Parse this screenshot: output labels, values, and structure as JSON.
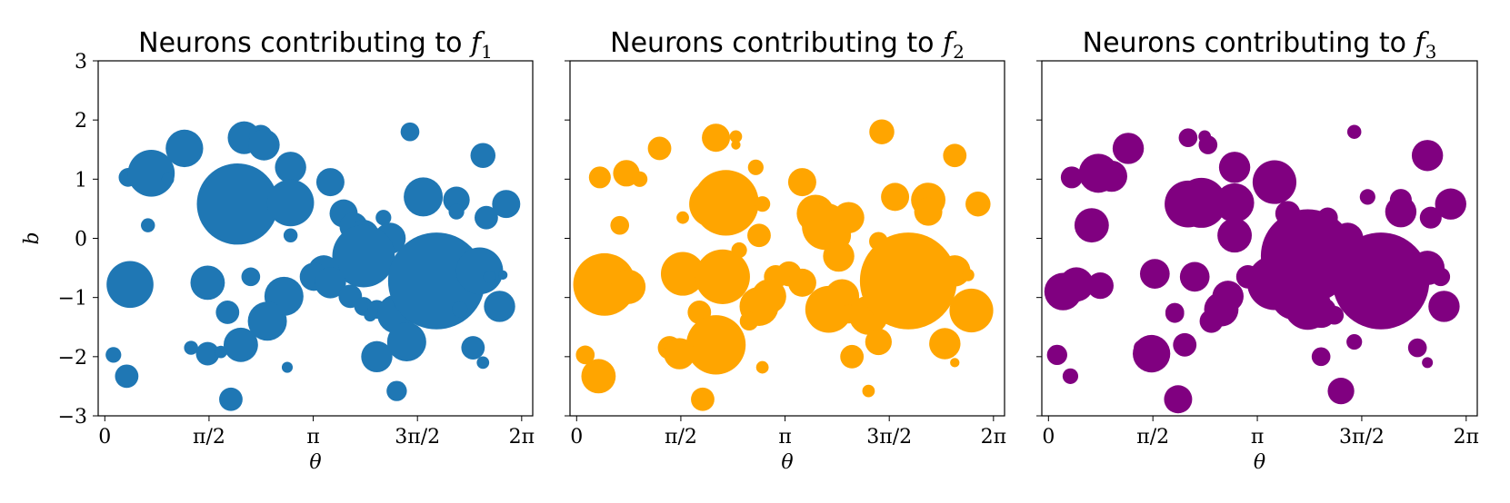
{
  "chart_data": [
    {
      "type": "scatter",
      "title_text": "Neurons contributing to ",
      "title_math": "f",
      "title_sub": "1",
      "xlabel": "θ",
      "ylabel": "b",
      "xlim": [
        -0.1,
        6.45
      ],
      "ylim": [
        -3,
        3
      ],
      "xticks": [
        0,
        1.5708,
        3.1416,
        4.7124,
        6.2832
      ],
      "xtick_labels": [
        "0",
        "π/2",
        "π",
        "3π/2",
        "2π"
      ],
      "yticks": [
        3,
        2,
        1,
        0,
        -1,
        -2,
        -3
      ],
      "ytick_labels": [
        "3",
        "2",
        "1",
        "0",
        "−1",
        "−2",
        "−3"
      ],
      "grid": false,
      "color": "#1f77b4",
      "points": [
        {
          "x": 0.35,
          "y": 1.03,
          "r": 0.12
        },
        {
          "x": 0.7,
          "y": 1.1,
          "r": 0.3
        },
        {
          "x": 0.95,
          "y": 1.0,
          "r": 0.08
        },
        {
          "x": 1.2,
          "y": 1.52,
          "r": 0.24
        },
        {
          "x": 2.1,
          "y": 1.7,
          "r": 0.21
        },
        {
          "x": 2.35,
          "y": 1.72,
          "r": 0.15
        },
        {
          "x": 2.4,
          "y": 1.58,
          "r": 0.2
        },
        {
          "x": 2.0,
          "y": 0.58,
          "r": 0.52
        },
        {
          "x": 2.8,
          "y": 1.2,
          "r": 0.2
        },
        {
          "x": 2.8,
          "y": 0.6,
          "r": 0.3
        },
        {
          "x": 2.8,
          "y": 0.05,
          "r": 0.09
        },
        {
          "x": 0.65,
          "y": 0.22,
          "r": 0.09
        },
        {
          "x": 3.4,
          "y": 0.95,
          "r": 0.18
        },
        {
          "x": 4.6,
          "y": 1.8,
          "r": 0.12
        },
        {
          "x": 5.7,
          "y": 1.4,
          "r": 0.16
        },
        {
          "x": 4.8,
          "y": 0.7,
          "r": 0.25
        },
        {
          "x": 5.3,
          "y": 0.65,
          "r": 0.17
        },
        {
          "x": 5.3,
          "y": 0.45,
          "r": 0.1
        },
        {
          "x": 6.05,
          "y": 0.58,
          "r": 0.18
        },
        {
          "x": 5.75,
          "y": 0.35,
          "r": 0.15
        },
        {
          "x": 3.6,
          "y": 0.42,
          "r": 0.18
        },
        {
          "x": 3.75,
          "y": 0.2,
          "r": 0.18
        },
        {
          "x": 3.9,
          "y": 0.05,
          "r": 0.2
        },
        {
          "x": 4.2,
          "y": 0.35,
          "r": 0.1
        },
        {
          "x": 4.3,
          "y": 0.0,
          "r": 0.2
        },
        {
          "x": 3.9,
          "y": -0.3,
          "r": 0.4
        },
        {
          "x": 3.3,
          "y": -0.55,
          "r": 0.2
        },
        {
          "x": 3.15,
          "y": -0.65,
          "r": 0.18
        },
        {
          "x": 3.4,
          "y": -0.75,
          "r": 0.2
        },
        {
          "x": 0.22,
          "y": -0.9,
          "r": 0.13
        },
        {
          "x": 0.38,
          "y": -0.78,
          "r": 0.3
        },
        {
          "x": 1.55,
          "y": -0.75,
          "r": 0.22
        },
        {
          "x": 2.2,
          "y": -0.65,
          "r": 0.12
        },
        {
          "x": 2.7,
          "y": -0.98,
          "r": 0.25
        },
        {
          "x": 2.45,
          "y": -1.4,
          "r": 0.25
        },
        {
          "x": 1.85,
          "y": -1.25,
          "r": 0.15
        },
        {
          "x": 3.7,
          "y": -0.98,
          "r": 0.15
        },
        {
          "x": 3.9,
          "y": -1.15,
          "r": 0.12
        },
        {
          "x": 4.0,
          "y": -1.3,
          "r": 0.08
        },
        {
          "x": 4.1,
          "y": -1.2,
          "r": 0.12
        },
        {
          "x": 4.4,
          "y": -1.28,
          "r": 0.25
        },
        {
          "x": 4.5,
          "y": -0.6,
          "r": 0.08
        },
        {
          "x": 5.0,
          "y": -0.72,
          "r": 0.62
        },
        {
          "x": 5.65,
          "y": -0.55,
          "r": 0.3
        },
        {
          "x": 5.35,
          "y": -1.2,
          "r": 0.1
        },
        {
          "x": 5.95,
          "y": -1.15,
          "r": 0.2
        },
        {
          "x": 5.55,
          "y": -1.85,
          "r": 0.15
        },
        {
          "x": 5.7,
          "y": -2.1,
          "r": 0.08
        },
        {
          "x": 4.55,
          "y": -1.75,
          "r": 0.25
        },
        {
          "x": 4.1,
          "y": -2.0,
          "r": 0.2
        },
        {
          "x": 4.4,
          "y": -2.58,
          "r": 0.13
        },
        {
          "x": 2.05,
          "y": -1.8,
          "r": 0.22
        },
        {
          "x": 1.3,
          "y": -1.85,
          "r": 0.09
        },
        {
          "x": 1.55,
          "y": -1.95,
          "r": 0.15
        },
        {
          "x": 1.75,
          "y": -1.92,
          "r": 0.08
        },
        {
          "x": 2.75,
          "y": -2.18,
          "r": 0.07
        },
        {
          "x": 0.13,
          "y": -1.97,
          "r": 0.1
        },
        {
          "x": 0.33,
          "y": -2.33,
          "r": 0.15
        },
        {
          "x": 1.9,
          "y": -2.72,
          "r": 0.15
        },
        {
          "x": 5.8,
          "y": -0.65,
          "r": 0.08
        },
        {
          "x": 6.0,
          "y": -0.62,
          "r": 0.06
        }
      ]
    },
    {
      "type": "scatter",
      "title_text": "Neurons contributing to ",
      "title_math": "f",
      "title_sub": "2",
      "xlabel": "θ",
      "ylabel": "",
      "xlim": [
        -0.1,
        6.45
      ],
      "ylim": [
        -3,
        3
      ],
      "xticks": [
        0,
        1.5708,
        3.1416,
        4.7124,
        6.2832
      ],
      "xtick_labels": [
        "0",
        "π/2",
        "π",
        "3π/2",
        "2π"
      ],
      "grid": false,
      "color": "#ffa500",
      "points": [
        {
          "x": 0.35,
          "y": 1.03,
          "r": 0.14
        },
        {
          "x": 0.75,
          "y": 1.1,
          "r": 0.17
        },
        {
          "x": 0.95,
          "y": 1.0,
          "r": 0.1
        },
        {
          "x": 1.25,
          "y": 1.52,
          "r": 0.15
        },
        {
          "x": 2.1,
          "y": 1.7,
          "r": 0.18
        },
        {
          "x": 2.4,
          "y": 1.72,
          "r": 0.08
        },
        {
          "x": 2.4,
          "y": 1.58,
          "r": 0.06
        },
        {
          "x": 2.05,
          "y": 0.58,
          "r": 0.3
        },
        {
          "x": 2.25,
          "y": 0.6,
          "r": 0.42
        },
        {
          "x": 2.7,
          "y": 1.2,
          "r": 0.1
        },
        {
          "x": 2.8,
          "y": 0.58,
          "r": 0.1
        },
        {
          "x": 2.75,
          "y": 0.05,
          "r": 0.15
        },
        {
          "x": 1.6,
          "y": 0.35,
          "r": 0.08
        },
        {
          "x": 0.65,
          "y": 0.22,
          "r": 0.12
        },
        {
          "x": 3.4,
          "y": 0.95,
          "r": 0.18
        },
        {
          "x": 4.6,
          "y": 1.8,
          "r": 0.16
        },
        {
          "x": 5.7,
          "y": 1.4,
          "r": 0.15
        },
        {
          "x": 4.8,
          "y": 0.7,
          "r": 0.18
        },
        {
          "x": 5.3,
          "y": 0.65,
          "r": 0.22
        },
        {
          "x": 5.3,
          "y": 0.45,
          "r": 0.18
        },
        {
          "x": 6.05,
          "y": 0.58,
          "r": 0.16
        },
        {
          "x": 3.6,
          "y": 0.42,
          "r": 0.24
        },
        {
          "x": 3.75,
          "y": 0.2,
          "r": 0.3
        },
        {
          "x": 3.9,
          "y": 0.05,
          "r": 0.2
        },
        {
          "x": 4.1,
          "y": 0.35,
          "r": 0.2
        },
        {
          "x": 3.95,
          "y": -0.3,
          "r": 0.2
        },
        {
          "x": 3.0,
          "y": -0.65,
          "r": 0.15
        },
        {
          "x": 3.2,
          "y": -0.6,
          "r": 0.16
        },
        {
          "x": 3.4,
          "y": -0.75,
          "r": 0.18
        },
        {
          "x": 0.42,
          "y": -0.78,
          "r": 0.4
        },
        {
          "x": 0.78,
          "y": -0.82,
          "r": 0.22
        },
        {
          "x": 1.6,
          "y": -0.6,
          "r": 0.28
        },
        {
          "x": 2.2,
          "y": -0.65,
          "r": 0.35
        },
        {
          "x": 2.9,
          "y": -0.98,
          "r": 0.22
        },
        {
          "x": 2.75,
          "y": -1.15,
          "r": 0.25
        },
        {
          "x": 2.6,
          "y": -1.4,
          "r": 0.12
        },
        {
          "x": 1.85,
          "y": -1.25,
          "r": 0.15
        },
        {
          "x": 4.0,
          "y": -0.98,
          "r": 0.22
        },
        {
          "x": 3.8,
          "y": -1.2,
          "r": 0.3
        },
        {
          "x": 4.1,
          "y": -1.28,
          "r": 0.12
        },
        {
          "x": 4.4,
          "y": -1.3,
          "r": 0.25
        },
        {
          "x": 4.5,
          "y": -0.6,
          "r": 0.12
        },
        {
          "x": 4.6,
          "y": -0.15,
          "r": 0.1
        },
        {
          "x": 4.55,
          "y": -0.05,
          "r": 0.12
        },
        {
          "x": 5.0,
          "y": -0.72,
          "r": 0.62
        },
        {
          "x": 5.7,
          "y": -0.55,
          "r": 0.2
        },
        {
          "x": 5.95,
          "y": -1.22,
          "r": 0.28
        },
        {
          "x": 5.55,
          "y": -1.78,
          "r": 0.2
        },
        {
          "x": 5.7,
          "y": -2.1,
          "r": 0.06
        },
        {
          "x": 5.9,
          "y": -0.62,
          "r": 0.08
        },
        {
          "x": 4.55,
          "y": -1.75,
          "r": 0.17
        },
        {
          "x": 4.15,
          "y": -2.0,
          "r": 0.15
        },
        {
          "x": 4.4,
          "y": -2.58,
          "r": 0.08
        },
        {
          "x": 2.1,
          "y": -1.8,
          "r": 0.38
        },
        {
          "x": 1.4,
          "y": -1.85,
          "r": 0.15
        },
        {
          "x": 1.55,
          "y": -1.95,
          "r": 0.2
        },
        {
          "x": 2.8,
          "y": -2.18,
          "r": 0.08
        },
        {
          "x": 0.13,
          "y": -1.97,
          "r": 0.12
        },
        {
          "x": 0.33,
          "y": -2.33,
          "r": 0.22
        },
        {
          "x": 1.9,
          "y": -2.72,
          "r": 0.15
        },
        {
          "x": 2.45,
          "y": -0.2,
          "r": 0.1
        }
      ]
    },
    {
      "type": "scatter",
      "title_text": "Neurons contributing to ",
      "title_math": "f",
      "title_sub": "3",
      "xlabel": "θ",
      "ylabel": "",
      "xlim": [
        -0.1,
        6.45
      ],
      "ylim": [
        -3,
        3
      ],
      "xticks": [
        0,
        1.5708,
        3.1416,
        4.7124,
        6.2832
      ],
      "xtick_labels": [
        "0",
        "π/2",
        "π",
        "3π/2",
        "2π"
      ],
      "grid": false,
      "color": "#800080",
      "points": [
        {
          "x": 0.35,
          "y": 1.03,
          "r": 0.14
        },
        {
          "x": 0.75,
          "y": 1.1,
          "r": 0.25
        },
        {
          "x": 0.95,
          "y": 1.05,
          "r": 0.2
        },
        {
          "x": 1.2,
          "y": 1.52,
          "r": 0.2
        },
        {
          "x": 2.1,
          "y": 1.7,
          "r": 0.12
        },
        {
          "x": 2.35,
          "y": 1.72,
          "r": 0.08
        },
        {
          "x": 2.4,
          "y": 1.58,
          "r": 0.12
        },
        {
          "x": 2.1,
          "y": 0.58,
          "r": 0.3
        },
        {
          "x": 2.3,
          "y": 0.6,
          "r": 0.32
        },
        {
          "x": 2.8,
          "y": 1.2,
          "r": 0.2
        },
        {
          "x": 2.8,
          "y": 0.6,
          "r": 0.25
        },
        {
          "x": 2.8,
          "y": 0.05,
          "r": 0.22
        },
        {
          "x": 0.65,
          "y": 0.22,
          "r": 0.22
        },
        {
          "x": 3.4,
          "y": 0.95,
          "r": 0.28
        },
        {
          "x": 4.6,
          "y": 1.8,
          "r": 0.09
        },
        {
          "x": 5.7,
          "y": 1.4,
          "r": 0.2
        },
        {
          "x": 4.8,
          "y": 0.7,
          "r": 0.1
        },
        {
          "x": 5.3,
          "y": 0.65,
          "r": 0.14
        },
        {
          "x": 5.3,
          "y": 0.45,
          "r": 0.2
        },
        {
          "x": 6.05,
          "y": 0.58,
          "r": 0.2
        },
        {
          "x": 5.75,
          "y": 0.35,
          "r": 0.14
        },
        {
          "x": 3.6,
          "y": 0.42,
          "r": 0.16
        },
        {
          "x": 3.75,
          "y": 0.2,
          "r": 0.18
        },
        {
          "x": 4.2,
          "y": 0.35,
          "r": 0.13
        },
        {
          "x": 4.5,
          "y": 0.0,
          "r": 0.2
        },
        {
          "x": 3.9,
          "y": -0.3,
          "r": 0.6
        },
        {
          "x": 3.4,
          "y": -0.75,
          "r": 0.35
        },
        {
          "x": 3.0,
          "y": -0.65,
          "r": 0.15
        },
        {
          "x": 0.22,
          "y": -0.9,
          "r": 0.24
        },
        {
          "x": 0.42,
          "y": -0.78,
          "r": 0.22
        },
        {
          "x": 0.78,
          "y": -0.8,
          "r": 0.17
        },
        {
          "x": 1.6,
          "y": -0.6,
          "r": 0.19
        },
        {
          "x": 2.2,
          "y": -0.65,
          "r": 0.19
        },
        {
          "x": 2.7,
          "y": -0.98,
          "r": 0.2
        },
        {
          "x": 2.6,
          "y": -1.2,
          "r": 0.22
        },
        {
          "x": 2.45,
          "y": -1.4,
          "r": 0.15
        },
        {
          "x": 1.9,
          "y": -1.25,
          "r": 0.12
        },
        {
          "x": 3.7,
          "y": -0.98,
          "r": 0.3
        },
        {
          "x": 3.9,
          "y": -1.15,
          "r": 0.3
        },
        {
          "x": 4.1,
          "y": -1.25,
          "r": 0.2
        },
        {
          "x": 4.3,
          "y": -1.3,
          "r": 0.12
        },
        {
          "x": 4.5,
          "y": -0.6,
          "r": 0.08
        },
        {
          "x": 5.0,
          "y": -0.72,
          "r": 0.62
        },
        {
          "x": 5.7,
          "y": -0.5,
          "r": 0.22
        },
        {
          "x": 5.35,
          "y": -1.2,
          "r": 0.1
        },
        {
          "x": 5.95,
          "y": -1.15,
          "r": 0.2
        },
        {
          "x": 5.55,
          "y": -1.85,
          "r": 0.12
        },
        {
          "x": 5.7,
          "y": -2.1,
          "r": 0.07
        },
        {
          "x": 5.9,
          "y": -0.65,
          "r": 0.12
        },
        {
          "x": 4.6,
          "y": -1.75,
          "r": 0.1
        },
        {
          "x": 4.1,
          "y": -2.0,
          "r": 0.12
        },
        {
          "x": 4.4,
          "y": -2.58,
          "r": 0.17
        },
        {
          "x": 2.05,
          "y": -1.8,
          "r": 0.15
        },
        {
          "x": 1.4,
          "y": -1.85,
          "r": 0.1
        },
        {
          "x": 1.55,
          "y": -1.95,
          "r": 0.24
        },
        {
          "x": 1.9,
          "y": -1.27,
          "r": 0.12
        },
        {
          "x": 0.13,
          "y": -1.97,
          "r": 0.13
        },
        {
          "x": 0.33,
          "y": -2.33,
          "r": 0.1
        },
        {
          "x": 1.95,
          "y": -2.72,
          "r": 0.18
        },
        {
          "x": 3.5,
          "y": -0.65,
          "r": 0.25
        },
        {
          "x": 3.25,
          "y": -0.6,
          "r": 0.12
        }
      ]
    }
  ]
}
